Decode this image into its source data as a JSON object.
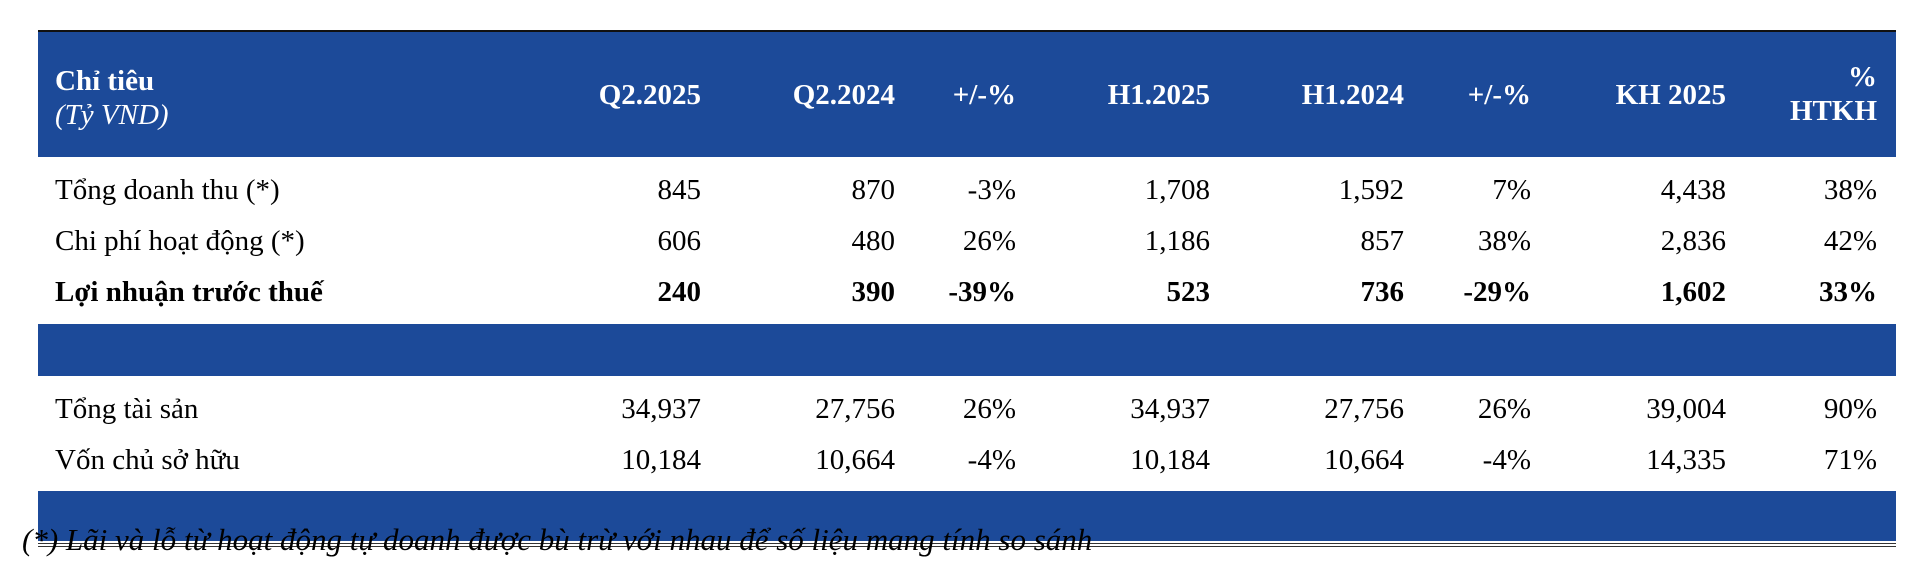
{
  "header": {
    "label_main": "Chỉ tiêu",
    "label_sub": "(Tỷ VND)",
    "columns": [
      "Q2.2025",
      "Q2.2024",
      "+/-%",
      "H1.2025",
      "H1.2024",
      "+/-%",
      "KH 2025"
    ],
    "last_col_line1": "%",
    "last_col_line2": "HTKH"
  },
  "rows_group1": [
    {
      "label": "Tổng doanh thu (*)",
      "values": [
        "845",
        "870",
        "-3%",
        "1,708",
        "1,592",
        "7%",
        "4,438",
        "38%"
      ],
      "bold": false
    },
    {
      "label": "Chi phí hoạt động (*)",
      "values": [
        "606",
        "480",
        "26%",
        "1,186",
        "857",
        "38%",
        "2,836",
        "42%"
      ],
      "bold": false
    },
    {
      "label": "Lợi nhuận trước thuế",
      "values": [
        "240",
        "390",
        "-39%",
        "523",
        "736",
        "-29%",
        "1,602",
        "33%"
      ],
      "bold": true
    }
  ],
  "rows_group2": [
    {
      "label": "Tổng tài sản",
      "values": [
        "34,937",
        "27,756",
        "26%",
        "34,937",
        "27,756",
        "26%",
        "39,004",
        "90%"
      ],
      "bold": false
    },
    {
      "label": "Vốn chủ sở hữu",
      "values": [
        "10,184",
        "10,664",
        "-4%",
        "10,184",
        "10,664",
        "-4%",
        "14,335",
        "71%"
      ],
      "bold": false
    }
  ],
  "footnote": "(*) Lãi và lỗ từ hoạt động tự doanh được bù trừ với nhau để số liệu mang tính so sánh",
  "colors": {
    "header_bg": "#1c4a99",
    "header_text": "#ffffff"
  }
}
